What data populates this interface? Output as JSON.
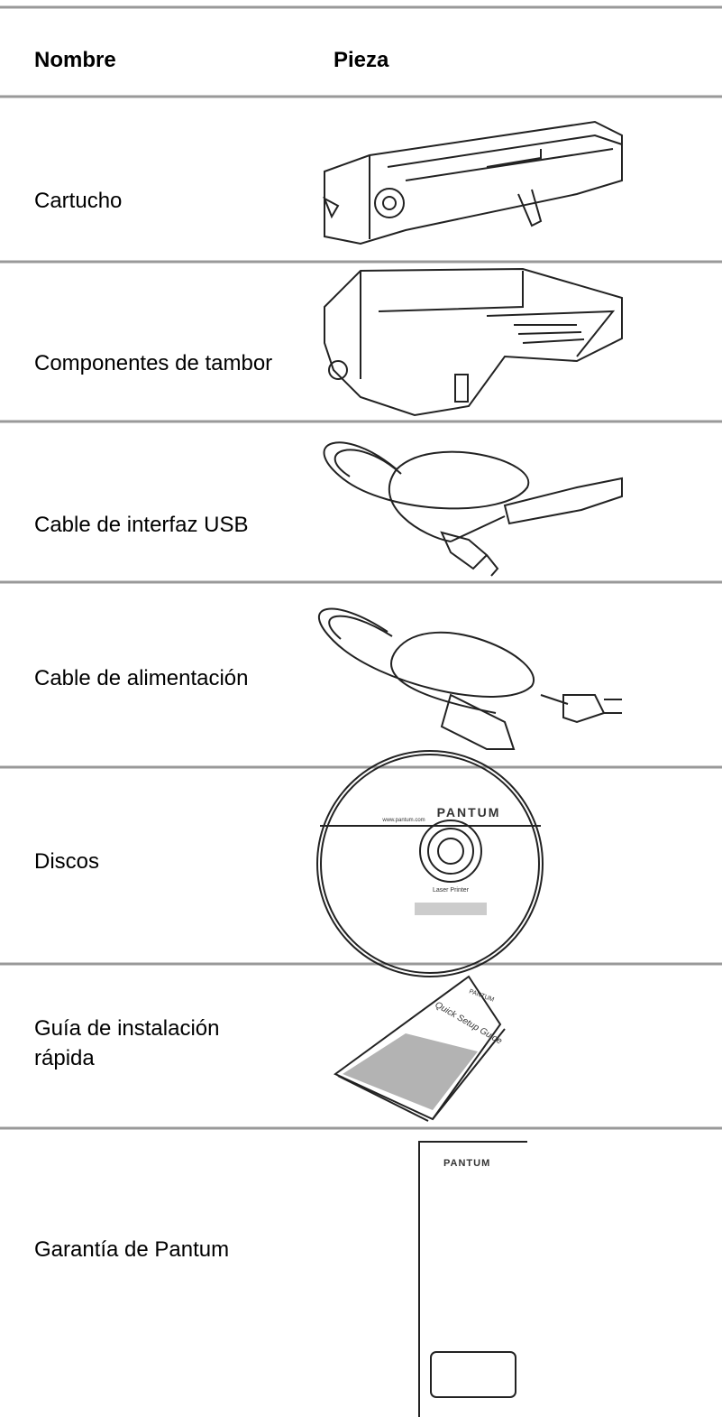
{
  "table": {
    "header": [
      "Nombre",
      "Pieza"
    ],
    "rows": [
      {
        "name": "Cartucho"
      },
      {
        "name": "Componentes de tambor"
      },
      {
        "name": "Cable de interfaz USB"
      },
      {
        "name": "Cable de alimentación"
      },
      {
        "name": "Discos",
        "image_texts": [
          "PANTUM",
          "www.pantum.com",
          "Laser Printer"
        ]
      },
      {
        "name": "Guía de instalación rápida",
        "image_texts": [
          "PANTUM",
          "Quick Setup Guide"
        ]
      },
      {
        "name": "Garantía de Pantum",
        "image_texts": [
          "PANTUM"
        ]
      }
    ]
  }
}
